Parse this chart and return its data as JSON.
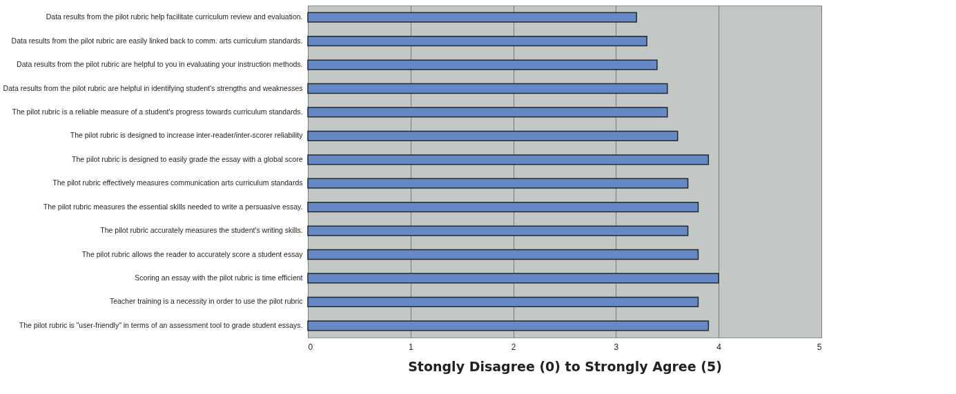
{
  "chart_data": {
    "type": "bar",
    "orientation": "horizontal",
    "xlabel": "Stongly Disagree (0) to Strongly Agree (5)",
    "categories": [
      "Data results from the pilot rubric help facilitate curriculum review and evaluation.",
      "Data results from the pilot rubric are easily linked back to comm. arts curriculum standards.",
      "Data results from the pilot rubric are helpful to you in evaluating your instruction methods.",
      "Data results from the pilot rubric are helpful in identifying student's strengths and weaknesses",
      "The pilot rubric is a reliable measure of a student's progress towards curriculum standards.",
      "The pilot rubric is designed to increase inter-reader/inter-scorer reliability",
      "The pilot rubric is designed to easily grade the essay with a global score",
      "The pilot rubric effectively measures communication arts curriculum standards",
      "The pilot rubric measures the essential skills needed to write a persuasive essay.",
      "The pilot rubric accurately measures the student's writing skills.",
      "The pilot rubric allows the reader to accurately score a student essay",
      "Scoring an essay with the pilot rubric is time efficient",
      "Teacher training is a necessity in order to use the pilot rubric",
      "The pilot rubric is \"user-friendly\" in terms of an assessment tool to grade student essays."
    ],
    "values": [
      3.2,
      3.3,
      3.4,
      3.5,
      3.5,
      3.6,
      3.9,
      3.7,
      3.8,
      3.7,
      3.8,
      4.0,
      3.8,
      3.9
    ],
    "color": "#6688c4",
    "xlim": [
      0,
      5
    ],
    "xticks": [
      0,
      1,
      2,
      3,
      4,
      5
    ],
    "grid": "x"
  }
}
